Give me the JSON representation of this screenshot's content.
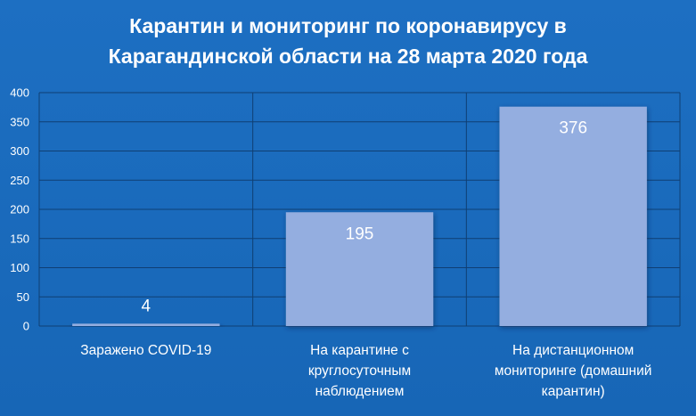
{
  "chart_data": {
    "type": "bar",
    "title_lines": [
      "Карантин и мониторинг по коронавирусу в",
      "Карагандинской области на 28 марта 2020 года"
    ],
    "categories": [
      [
        "Заражено COVID-19"
      ],
      [
        "На карантине с",
        "круглосуточным",
        "наблюдением"
      ],
      [
        "На дистанционном",
        "мониторинге (домашний",
        "карантин)"
      ]
    ],
    "values": [
      4,
      195,
      376
    ],
    "data_labels": [
      "4",
      "195",
      "376"
    ],
    "y_ticks": [
      0,
      50,
      100,
      150,
      200,
      250,
      300,
      350,
      400
    ],
    "ylim": [
      0,
      400
    ],
    "grid": "horizontal and vertical",
    "colors": {
      "background": "#1a6bbd",
      "bar_fill": "#94aee0",
      "text": "#ffffff",
      "grid": "#0f3f73"
    }
  }
}
